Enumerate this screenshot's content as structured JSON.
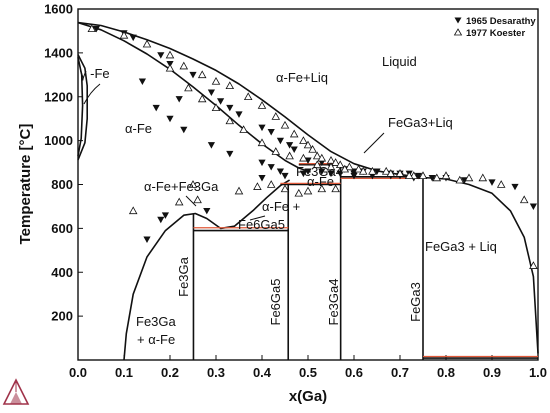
{
  "chart_data": {
    "type": "scatter",
    "title": "",
    "xlabel": "x(Ga)",
    "ylabel": "Temperature [°C]",
    "xlim": [
      0.0,
      1.0
    ],
    "ylim": [
      0,
      1600
    ],
    "xticks": [
      "0.0",
      "0.1",
      "0.2",
      "0.3",
      "0.4",
      "0.5",
      "0.6",
      "0.7",
      "0.8",
      "0.9",
      "1.0"
    ],
    "yticks": [
      "200",
      "400",
      "600",
      "800",
      "1000",
      "1200",
      "1400",
      "1600"
    ],
    "legend": {
      "position": "top-right"
    },
    "series": [
      {
        "name": "1965 Desarathy",
        "marker": "filled-down-triangle",
        "color": "#111111",
        "x": [
          0.04,
          0.1,
          0.12,
          0.18,
          0.2,
          0.25,
          0.29,
          0.31,
          0.33,
          0.35,
          0.4,
          0.42,
          0.44,
          0.46,
          0.47,
          0.5,
          0.53,
          0.55,
          0.58,
          0.6,
          0.62,
          0.65,
          0.68,
          0.7,
          0.72,
          0.74,
          0.77,
          0.8,
          0.84,
          0.9,
          0.95,
          0.99,
          0.14,
          0.22,
          0.17,
          0.2,
          0.23,
          0.29,
          0.33,
          0.4,
          0.42,
          0.44,
          0.49,
          0.53,
          0.57,
          0.6,
          0.64,
          0.68,
          0.73,
          0.15,
          0.18,
          0.19,
          0.28,
          0.4,
          0.45,
          0.5,
          0.55,
          0.6,
          0.7
        ],
        "y": [
          1510,
          1490,
          1470,
          1390,
          1350,
          1300,
          1220,
          1180,
          1150,
          1120,
          1060,
          1040,
          1000,
          980,
          960,
          910,
          900,
          880,
          870,
          860,
          860,
          860,
          850,
          850,
          850,
          840,
          830,
          830,
          820,
          810,
          790,
          700,
          1270,
          1190,
          1150,
          1100,
          1050,
          980,
          940,
          900,
          880,
          860,
          850,
          860,
          850,
          850,
          840,
          840,
          830,
          550,
          640,
          660,
          680,
          830,
          840,
          860,
          850,
          840,
          840
        ]
      },
      {
        "name": "1977 Koester",
        "marker": "open-up-triangle",
        "color": "#111111",
        "x": [
          0.03,
          0.1,
          0.15,
          0.2,
          0.23,
          0.27,
          0.3,
          0.33,
          0.37,
          0.4,
          0.43,
          0.45,
          0.47,
          0.49,
          0.5,
          0.51,
          0.52,
          0.53,
          0.55,
          0.56,
          0.57,
          0.59,
          0.61,
          0.64,
          0.67,
          0.7,
          0.73,
          0.75,
          0.8,
          0.85,
          0.88,
          0.92,
          0.97,
          0.99,
          0.2,
          0.24,
          0.27,
          0.3,
          0.33,
          0.36,
          0.4,
          0.43,
          0.46,
          0.49,
          0.52,
          0.55,
          0.58,
          0.62,
          0.68,
          0.72,
          0.78,
          0.83,
          0.12,
          0.22,
          0.25,
          0.26,
          0.35,
          0.39,
          0.42,
          0.45,
          0.48,
          0.5,
          0.53,
          0.56
        ],
        "y": [
          1510,
          1480,
          1440,
          1390,
          1340,
          1300,
          1270,
          1250,
          1200,
          1160,
          1110,
          1070,
          1030,
          1000,
          980,
          960,
          930,
          920,
          910,
          900,
          890,
          880,
          870,
          860,
          860,
          850,
          840,
          840,
          840,
          830,
          830,
          800,
          730,
          430,
          1330,
          1240,
          1190,
          1150,
          1090,
          1050,
          990,
          950,
          930,
          920,
          890,
          880,
          870,
          860,
          850,
          840,
          830,
          820,
          680,
          720,
          800,
          730,
          770,
          790,
          800,
          780,
          760,
          770,
          780,
          780
        ]
      }
    ],
    "phase_labels": [
      "γ -Fe",
      "α-Fe",
      "α-Fe+Liq",
      "Liquid",
      "FeGa3+Liq",
      "Fe3Ga4",
      "α-Fe",
      "α-Fe+Fe3Ga",
      "α-Fe +",
      "Fe6Ga5",
      "Fe3Ga",
      "Fe6Ga5",
      "Fe3Ga4",
      "FeGa3",
      "FeGa3 + Liq",
      "Fe3Ga",
      "+ α-Fe"
    ]
  }
}
